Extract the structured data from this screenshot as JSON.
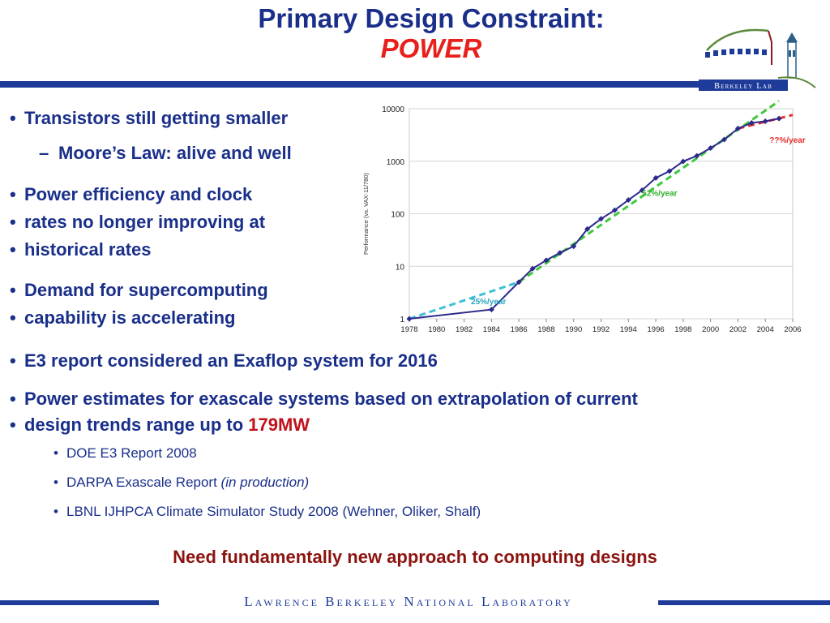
{
  "title": {
    "line1": "Primary Design Constraint:",
    "line2": "POWER"
  },
  "logo": {
    "label": "Berkeley Lab"
  },
  "bullets": [
    {
      "text": "Transistors still getting smaller"
    },
    {
      "text": "Moore’s Law: alive and well"
    },
    {
      "text": "Power efficiency and clock"
    },
    {
      "text": "rates no longer improving at"
    },
    {
      "text": "historical rates"
    },
    {
      "text": "Demand for supercomputing"
    },
    {
      "text": "capability is accelerating"
    },
    {
      "text": "E3 report considered an Exaflop system for 2016"
    },
    {
      "text": "Power estimates for exascale systems based on extrapolation of current"
    },
    {
      "text": "design trends range up to ",
      "highlight": "179MW"
    }
  ],
  "subbullets": [
    {
      "text": "DOE E3 Report 2008"
    },
    {
      "text": "DARPA Exascale Report ",
      "italic": "(in production)"
    },
    {
      "text": "LBNL IJHPCA Climate Simulator Study 2008 (Wehner, Oliker, Shalf)"
    }
  ],
  "conclusion": "Need fundamentally new approach to computing designs",
  "footer": "Lawrence Berkeley National Laboratory",
  "chart_data": {
    "type": "line",
    "ylabel": "Performance (vs. VAX-11/780)",
    "yscale": "log",
    "ylim": [
      1,
      10000
    ],
    "xlim": [
      1978,
      2006
    ],
    "yticks": [
      "1",
      "10",
      "100",
      "1000",
      "10000"
    ],
    "xticks": [
      "1978",
      "1980",
      "1982",
      "1984",
      "1986",
      "1988",
      "1990",
      "1992",
      "1994",
      "1996",
      "1998",
      "2000",
      "2002",
      "2004",
      "2006"
    ],
    "series": [
      {
        "color": "#2c2a8c",
        "x": [
          1978,
          1984,
          1986,
          1987,
          1988,
          1989,
          1990,
          1991,
          1992,
          1993,
          1994,
          1995,
          1996,
          1997,
          1998,
          1999,
          2000,
          2001,
          2002,
          2003,
          2004,
          2005
        ],
        "y": [
          1,
          1.5,
          5,
          9,
          13,
          18,
          24,
          51,
          80,
          117,
          183,
          280,
          481,
          649,
          993,
          1267,
          1779,
          2584,
          4195,
          5364,
          5764,
          6505
        ]
      }
    ],
    "trends": [
      {
        "label": "25%/year",
        "color": "#3cc0d4",
        "x": [
          1978,
          1986
        ],
        "y": [
          1,
          5
        ]
      },
      {
        "label": "52%/year",
        "color": "#3ec83a",
        "x": [
          1986,
          2005
        ],
        "y": [
          5,
          14000
        ]
      },
      {
        "label": "??%/year",
        "color": "#e8302c",
        "x": [
          2002,
          2006
        ],
        "y": [
          4195,
          7600
        ]
      }
    ],
    "annotations": [
      "25%/year",
      "52%/year",
      "??%/year"
    ]
  }
}
